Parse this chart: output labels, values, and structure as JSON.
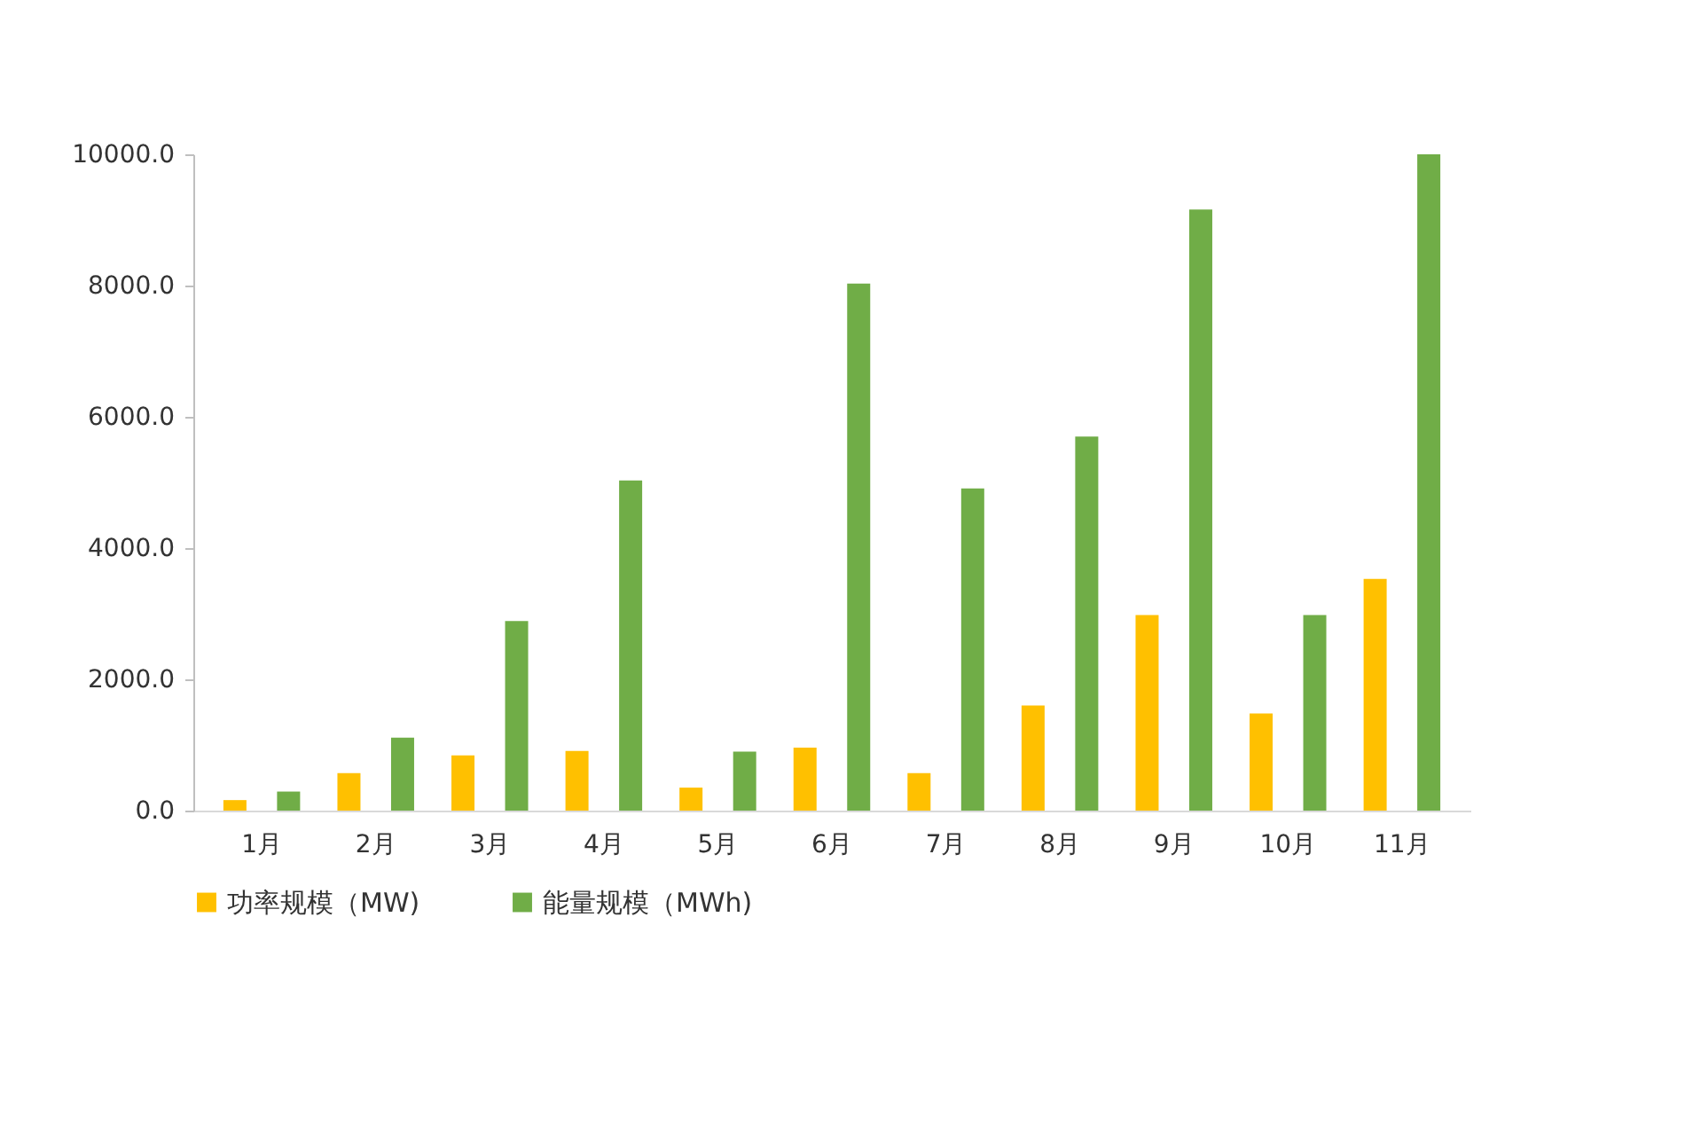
{
  "chart_data": {
    "type": "bar",
    "categories": [
      "1月",
      "2月",
      "3月",
      "4月",
      "5月",
      "6月",
      "7月",
      "8月",
      "9月",
      "10月",
      "11月"
    ],
    "series": [
      {
        "name": "功率规模（MW)",
        "color": "#ffc000",
        "values": [
          160,
          570,
          840,
          910,
          350,
          960,
          570,
          1600,
          2980,
          1480,
          3530
        ]
      },
      {
        "name": "能量规模（MWh)",
        "color": "#70ad47",
        "values": [
          290,
          1110,
          2890,
          5030,
          900,
          8030,
          4910,
          5700,
          9160,
          2980,
          10000
        ]
      }
    ],
    "ylim": [
      0,
      10000
    ],
    "yticks": [
      {
        "value": 0,
        "label": "0.0"
      },
      {
        "value": 2000,
        "label": "2000.0"
      },
      {
        "value": 4000,
        "label": "4000.0"
      },
      {
        "value": 6000,
        "label": "6000.0"
      },
      {
        "value": 8000,
        "label": "8000.0"
      },
      {
        "value": 10000,
        "label": "10000.0"
      }
    ],
    "grid": false,
    "legend": "bottom"
  }
}
